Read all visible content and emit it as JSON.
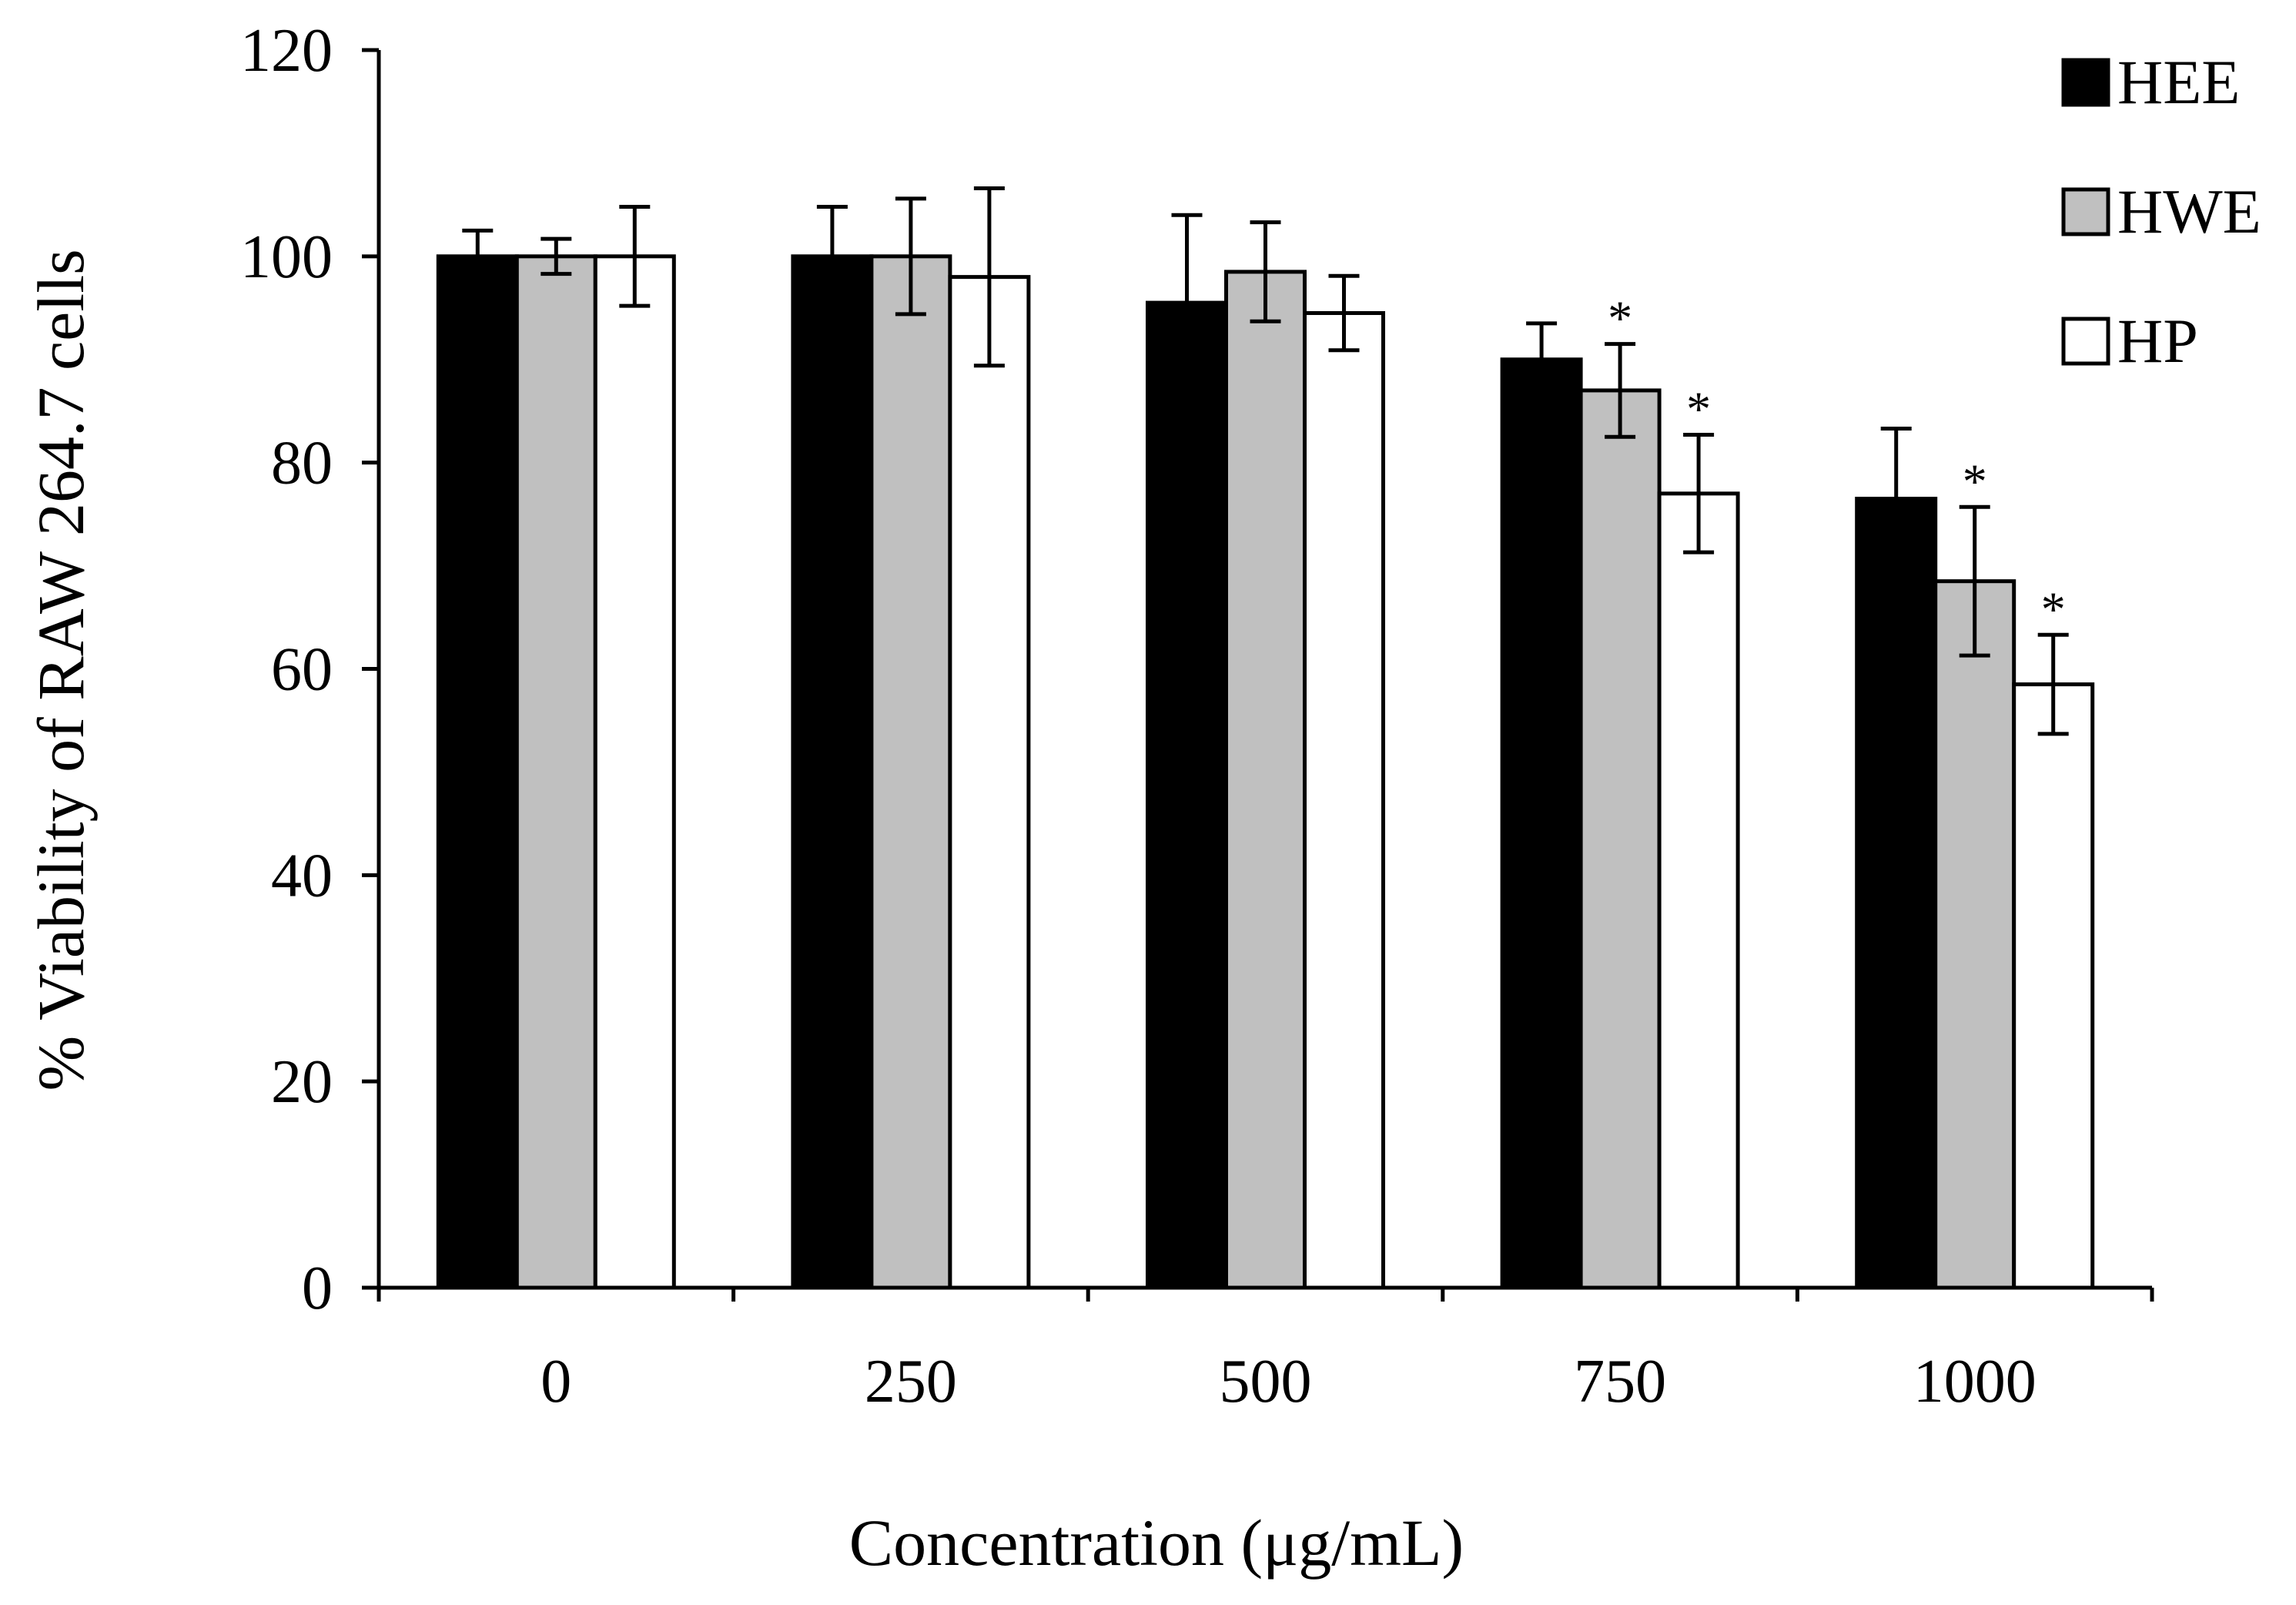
{
  "chart_data": {
    "type": "bar",
    "title": "",
    "xlabel": "Concentration (μg/mL)",
    "ylabel": "% Viability of RAW 264.7 cells",
    "ylim": [
      0,
      120
    ],
    "yticks": [
      0,
      20,
      40,
      60,
      80,
      100,
      120
    ],
    "categories": [
      "0",
      "250",
      "500",
      "750",
      "1000"
    ],
    "legend_position": "top-right",
    "grid": false,
    "significance_marker": "*",
    "series": [
      {
        "name": "HEE",
        "color": "#000000",
        "values": [
          100,
          100,
          95.5,
          90,
          76.5
        ],
        "errors": [
          2.5,
          4.8,
          8.5,
          3.5,
          6.8
        ],
        "significant": [
          false,
          false,
          false,
          false,
          false
        ]
      },
      {
        "name": "HWE",
        "color": "#c0c0c0",
        "values": [
          100,
          100,
          98.5,
          87,
          68.5
        ],
        "errors": [
          1.7,
          5.6,
          4.8,
          4.5,
          7.2
        ],
        "significant": [
          false,
          false,
          false,
          true,
          true
        ]
      },
      {
        "name": "HP",
        "color": "#ffffff",
        "values": [
          100,
          98,
          94.5,
          77,
          58.5
        ],
        "errors": [
          4.8,
          8.6,
          3.6,
          5.7,
          4.8
        ],
        "significant": [
          false,
          false,
          false,
          true,
          true
        ]
      }
    ]
  }
}
